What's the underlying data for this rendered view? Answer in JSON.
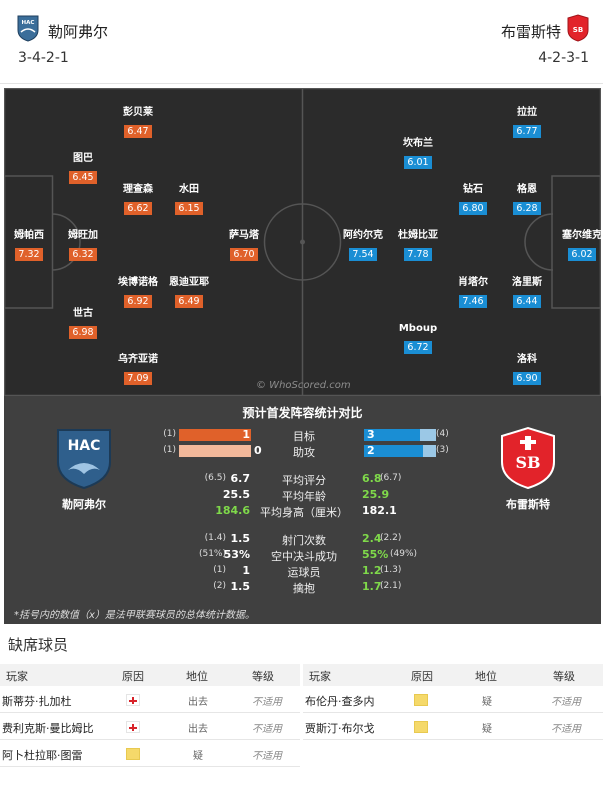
{
  "header": {
    "home_name": "勒阿弗尔",
    "away_name": "布雷斯特",
    "home_formation": "3-4-2-1",
    "away_formation": "4-2-3-1",
    "home_crest_text": "HAC",
    "away_crest_text": "SB"
  },
  "pitch": {
    "watermark": "© WhoScored.com",
    "home_players": [
      {
        "name": "彭贝莱",
        "rating": "6.47"
      },
      {
        "name": "图巴",
        "rating": "6.45"
      },
      {
        "name": "理查森",
        "rating": "6.62"
      },
      {
        "name": "水田",
        "rating": "6.15"
      },
      {
        "name": "姆帕西",
        "rating": "7.32"
      },
      {
        "name": "姆旺加",
        "rating": "6.32"
      },
      {
        "name": "萨马塔",
        "rating": "6.70"
      },
      {
        "name": "埃博诺格",
        "rating": "6.92"
      },
      {
        "name": "恩迪亚耶",
        "rating": "6.49"
      },
      {
        "name": "世古",
        "rating": "6.98"
      },
      {
        "name": "乌齐亚诺",
        "rating": "7.09"
      }
    ],
    "away_players": [
      {
        "name": "拉拉",
        "rating": "6.77"
      },
      {
        "name": "坎布兰",
        "rating": "6.01"
      },
      {
        "name": "钻石",
        "rating": "6.80"
      },
      {
        "name": "格恩",
        "rating": "6.28"
      },
      {
        "name": "阿约尔克",
        "rating": "7.54"
      },
      {
        "name": "杜姆比亚",
        "rating": "7.78"
      },
      {
        "name": "塞尔维克",
        "rating": "6.02"
      },
      {
        "name": "肖塔尔",
        "rating": "7.46"
      },
      {
        "name": "洛里斯",
        "rating": "6.44"
      },
      {
        "name": "Mboup",
        "rating": "6.72"
      },
      {
        "name": "洛科",
        "rating": "6.90"
      }
    ]
  },
  "stats": {
    "title": "预计首发阵容统计对比",
    "home_caption": "勒阿弗尔",
    "away_caption": "布雷斯特",
    "goals": {
      "label": "目标",
      "home": "1",
      "home_prior": "(1)",
      "away": "3",
      "away_prior": "(4)",
      "home_frac": 1.0,
      "away_frac": 0.78
    },
    "assists": {
      "label": "助攻",
      "home": "0",
      "home_prior": "(1)",
      "away": "2",
      "away_prior": "(3)",
      "home_frac": 1.0,
      "away_frac": 0.82
    },
    "rows": [
      {
        "label": "平均评分",
        "home": "6.7",
        "home_prior": "(6.5)",
        "away": "6.8",
        "away_prior": "(6.7)"
      },
      {
        "label": "平均年龄",
        "home": "25.5",
        "home_prior": "",
        "away": "25.9",
        "away_prior": ""
      },
      {
        "label": "平均身高（厘米）",
        "home": "184.6",
        "home_prior": "",
        "away": "182.1",
        "away_prior": ""
      },
      {
        "label": "射门次数",
        "home": "1.5",
        "home_prior": "(1.4)",
        "away": "2.4",
        "away_prior": "(2.2)"
      },
      {
        "label": "空中决斗成功",
        "home": "53%",
        "home_prior": "(51%)",
        "away": "55%",
        "away_prior": "(49%)"
      },
      {
        "label": "运球员",
        "home": "1",
        "home_prior": "(1)",
        "away": "1.2",
        "away_prior": "(1.3)"
      },
      {
        "label": "擒抱",
        "home": "1.5",
        "home_prior": "(2)",
        "away": "1.7",
        "away_prior": "(2.1)"
      }
    ],
    "note": "*括号内的数值（x）是法甲联赛球员的总体统计数据。",
    "colors": {
      "home": "#e0612a",
      "home_light": "#f2b89a",
      "away": "#1a8ed4",
      "away_light": "#9bc8e6",
      "green": "#7fd94a"
    }
  },
  "absent": {
    "title": "缺席球员",
    "headers": {
      "player": "玩家",
      "reason": "原因",
      "position": "地位",
      "grade": "等级"
    },
    "home": [
      {
        "name": "斯蒂芬·扎加杜",
        "reason": "injury-icon",
        "position": "出去",
        "grade": "不适用"
      },
      {
        "name": "费利克斯·曼比姆比",
        "reason": "injury-icon",
        "position": "出去",
        "grade": "不适用"
      },
      {
        "name": "阿卜杜拉耶·图雷",
        "reason": "doubt-icon",
        "position": "疑",
        "grade": "不适用"
      }
    ],
    "away": [
      {
        "name": "布伦丹·查多内",
        "reason": "doubt-icon",
        "position": "疑",
        "grade": "不适用"
      },
      {
        "name": "贾斯汀·布尔戈",
        "reason": "doubt-icon",
        "position": "疑",
        "grade": "不适用"
      }
    ]
  }
}
